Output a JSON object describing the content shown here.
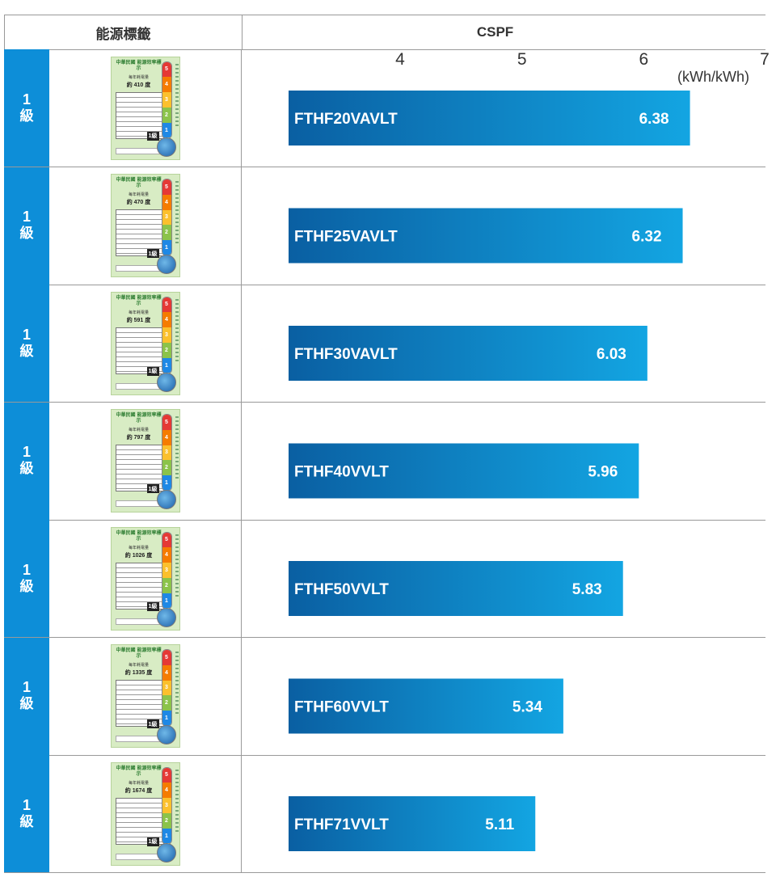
{
  "header": {
    "label_col": "能源標籤",
    "value_col": "CSPF"
  },
  "chart_data": {
    "type": "bar",
    "orientation": "horizontal",
    "title": "",
    "xlabel": "CSPF",
    "unit": "(kWh/kWh)",
    "xlim": [
      4,
      7
    ],
    "ticks": [
      "4",
      "5",
      "6",
      "7"
    ],
    "categories": [
      "FTHF20VAVLT",
      "FTHF25VAVLT",
      "FTHF30VAVLT",
      "FTHF40VVLT",
      "FTHF50VVLT",
      "FTHF60VVLT",
      "FTHF71VVLT"
    ],
    "values": [
      6.38,
      6.32,
      6.03,
      5.96,
      5.83,
      5.34,
      5.11
    ],
    "bar_color_start": "#0a5fa2",
    "bar_color_end": "#13a5e2",
    "grid": false
  },
  "rows": [
    {
      "grade_level": "1",
      "grade_unit": "級",
      "label_kwh": "約 410 度"
    },
    {
      "grade_level": "1",
      "grade_unit": "級",
      "label_kwh": "約 470 度"
    },
    {
      "grade_level": "1",
      "grade_unit": "級",
      "label_kwh": "約 591 度"
    },
    {
      "grade_level": "1",
      "grade_unit": "級",
      "label_kwh": "約 797 度"
    },
    {
      "grade_level": "1",
      "grade_unit": "級",
      "label_kwh": "約 1026 度"
    },
    {
      "grade_level": "1",
      "grade_unit": "級",
      "label_kwh": "約 1335 度"
    },
    {
      "grade_level": "1",
      "grade_unit": "級",
      "label_kwh": "約 1674 度"
    }
  ],
  "energy_label": {
    "title": "中華民國 能源效率標示",
    "subtitle": "每年耗電量",
    "scale": [
      "5",
      "4",
      "3",
      "2",
      "1"
    ],
    "scale_colors": [
      "#e53935",
      "#f57c00",
      "#fbc02d",
      "#8bc34a",
      "#1e88e5"
    ],
    "grade_marker": "1級"
  },
  "colors": {
    "grade_bg": "#0d8ed8",
    "label_bg": "#d8ecc4"
  }
}
